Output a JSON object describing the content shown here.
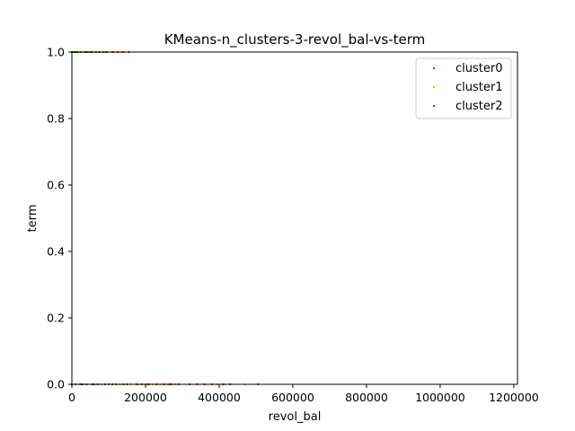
{
  "chart_data": {
    "type": "scatter",
    "title": "KMeans-n_clusters-3-revol_bal-vs-term",
    "xlabel": "revol_bal",
    "ylabel": "term",
    "xlim": [
      0,
      1210000
    ],
    "ylim": [
      0.0,
      1.0
    ],
    "x_ticks": [
      0,
      200000,
      400000,
      600000,
      800000,
      1000000,
      1200000
    ],
    "x_tick_labels": [
      "0",
      "200000",
      "400000",
      "600000",
      "800000",
      "1000000",
      "1200000"
    ],
    "y_ticks": [
      0.0,
      0.2,
      0.4,
      0.6,
      0.8,
      1.0
    ],
    "y_tick_labels": [
      "0.0",
      "0.2",
      "0.4",
      "0.6",
      "0.8",
      "1.0"
    ],
    "grid": false,
    "legend_position": "top-right",
    "series": [
      {
        "name": "cluster0",
        "color": "#ff0000",
        "points": [
          [
            35000,
            1
          ],
          [
            55000,
            1
          ],
          [
            75000,
            1
          ],
          [
            95000,
            1
          ],
          [
            110000,
            1
          ],
          [
            125000,
            1
          ],
          [
            140000,
            1
          ],
          [
            155000,
            1
          ],
          [
            30000,
            0
          ],
          [
            60000,
            0
          ],
          [
            100000,
            0
          ],
          [
            150000,
            0
          ],
          [
            190000,
            0
          ],
          [
            210000,
            0
          ],
          [
            230000,
            0
          ],
          [
            250000,
            0
          ],
          [
            270000,
            0
          ],
          [
            290000,
            0
          ],
          [
            340000,
            0
          ],
          [
            360000,
            0
          ],
          [
            380000,
            0
          ],
          [
            410000,
            0
          ],
          [
            430000,
            0
          ],
          [
            505000,
            0
          ]
        ]
      },
      {
        "name": "cluster1",
        "color": "#ffa500",
        "points": [
          [
            20000,
            1
          ],
          [
            45000,
            1
          ],
          [
            70000,
            1
          ],
          [
            90000,
            1
          ],
          [
            115000,
            1
          ],
          [
            135000,
            1
          ],
          [
            20000,
            0
          ],
          [
            80000,
            0
          ],
          [
            130000,
            0
          ],
          [
            160000,
            0
          ],
          [
            180000,
            0
          ],
          [
            200000,
            0
          ],
          [
            220000,
            0
          ],
          [
            240000,
            0
          ],
          [
            260000,
            0
          ],
          [
            280000,
            0
          ],
          [
            395000,
            0
          ],
          [
            415000,
            0
          ],
          [
            470000,
            0
          ]
        ]
      },
      {
        "name": "cluster2",
        "color": "#008000",
        "points": [
          [
            0,
            1
          ],
          [
            5000,
            1
          ],
          [
            10000,
            1
          ],
          [
            15000,
            1
          ],
          [
            25000,
            1
          ],
          [
            40000,
            1
          ],
          [
            50000,
            1
          ],
          [
            65000,
            1
          ],
          [
            85000,
            1
          ],
          [
            0,
            0
          ],
          [
            10000,
            0
          ],
          [
            25000,
            0
          ],
          [
            40000,
            0
          ],
          [
            55000,
            0
          ],
          [
            70000,
            0
          ],
          [
            90000,
            0
          ],
          [
            110000,
            0
          ],
          [
            120000,
            0
          ],
          [
            140000,
            0
          ],
          [
            175000,
            0
          ],
          [
            205000,
            0
          ],
          [
            265000,
            0
          ],
          [
            320000,
            0
          ]
        ]
      }
    ]
  }
}
